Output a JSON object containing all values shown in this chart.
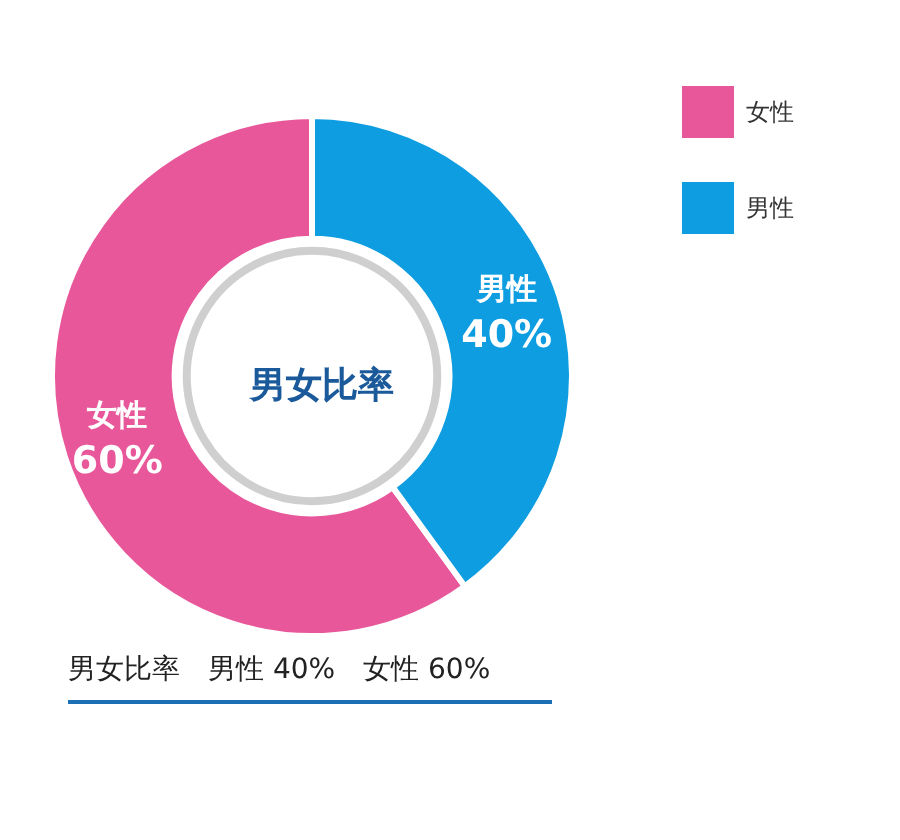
{
  "chart_data": {
    "type": "donut",
    "title": "男女比率",
    "categories": [
      "女性",
      "男性"
    ],
    "values": [
      60,
      40
    ],
    "colors": [
      "#e8579a",
      "#0d9de0"
    ],
    "value_labels": [
      "60%",
      "40%"
    ],
    "legend": "top right",
    "annotations": [
      "男女比率　男性 40%　女性 60%"
    ]
  }
}
